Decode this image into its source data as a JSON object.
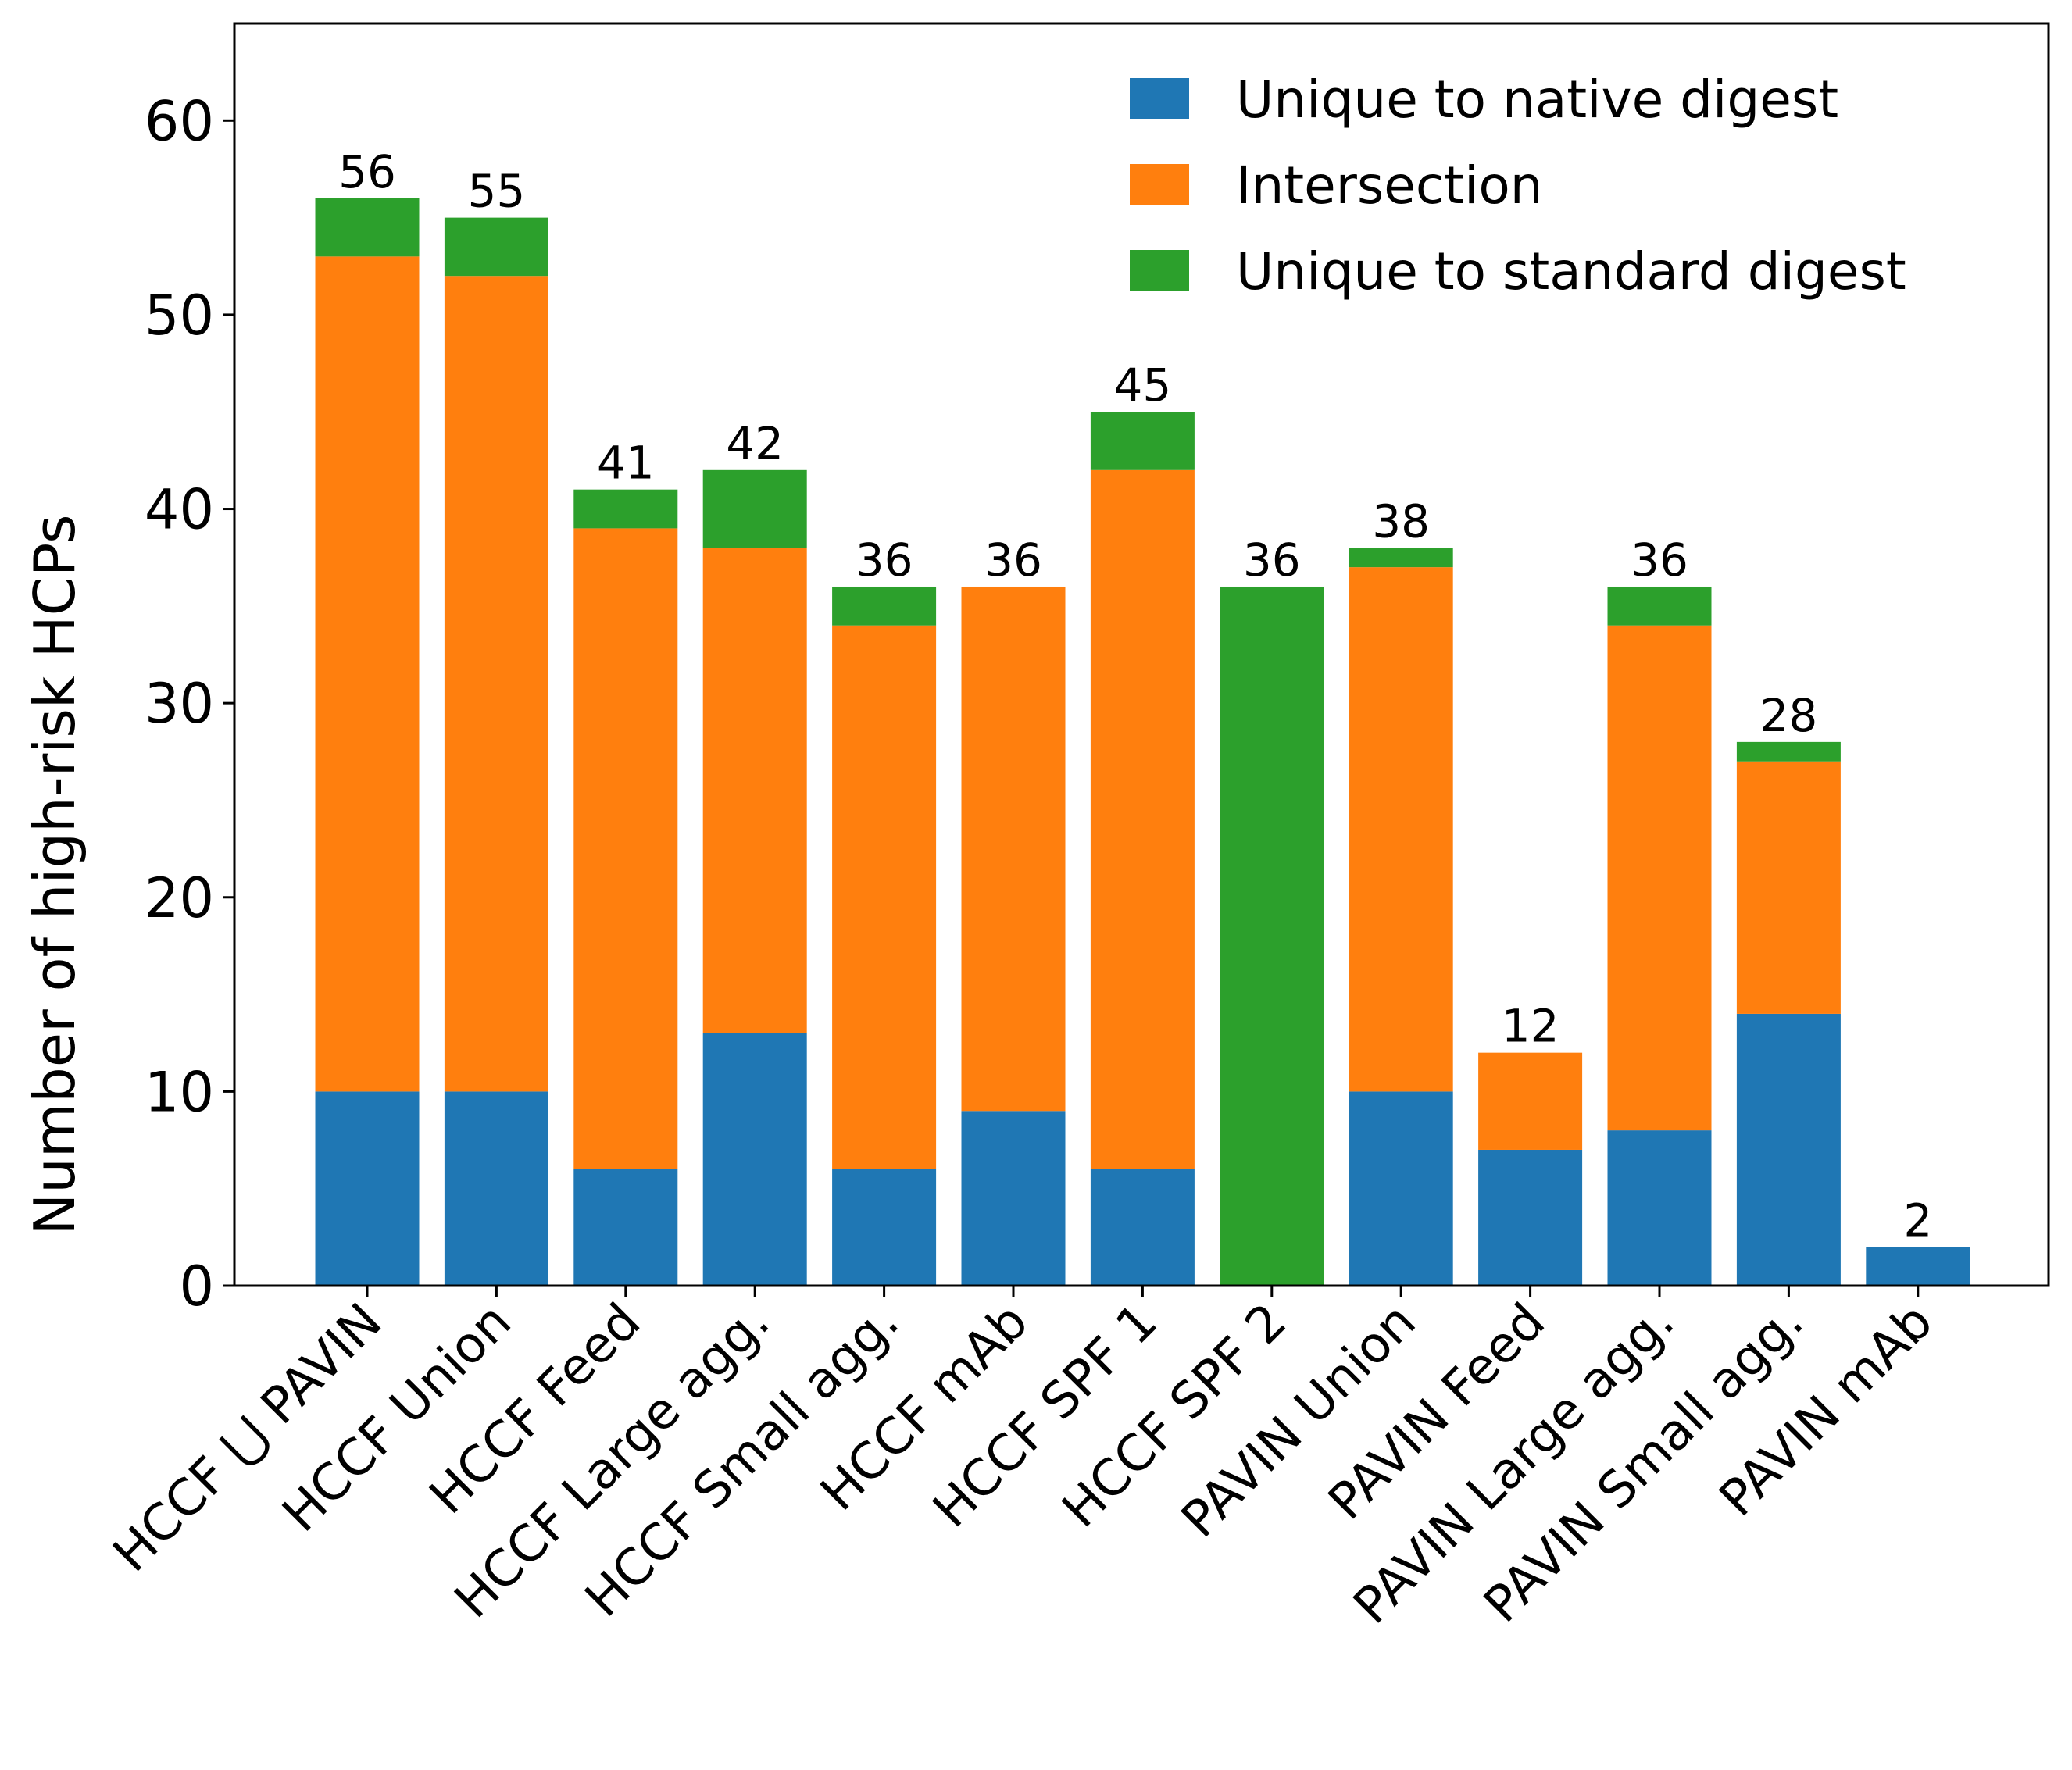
{
  "chart_data": {
    "type": "bar",
    "stacked": true,
    "categories": [
      "HCCF ⋃ PAVIN",
      "HCCF Union",
      "HCCF Feed",
      "HCCF Large agg.",
      "HCCF Small agg.",
      "HCCF mAb",
      "HCCF SPF 1",
      "HCCF SPF 2",
      "PAVIN Union",
      "PAVIN Feed",
      "PAVIN Large agg.",
      "PAVIN Small agg.",
      "PAVIN mAb"
    ],
    "series": [
      {
        "name": "Unique to native digest",
        "color": "#1f77b4",
        "values": [
          10,
          10,
          6,
          13,
          6,
          9,
          6,
          0,
          10,
          7,
          8,
          14,
          2
        ]
      },
      {
        "name": "Intersection",
        "color": "#ff7f0e",
        "values": [
          43,
          42,
          33,
          25,
          28,
          27,
          36,
          0,
          27,
          5,
          26,
          13,
          0
        ]
      },
      {
        "name": "Unique to standard digest",
        "color": "#2ca02c",
        "values": [
          3,
          3,
          2,
          4,
          2,
          0,
          3,
          36,
          1,
          0,
          2,
          1,
          0
        ]
      }
    ],
    "totals": [
      "56",
      "55",
      "41",
      "42",
      "36",
      "36",
      "45",
      "36",
      "38",
      "12",
      "36",
      "28",
      "2"
    ],
    "ylabel": "Number of high-risk HCPs",
    "xlabel": "",
    "ylim": [
      0,
      65
    ],
    "yticks": [
      0,
      10,
      20,
      30,
      40,
      50,
      60
    ],
    "ytick_labels": [
      "0",
      "10",
      "20",
      "30",
      "40",
      "50",
      "60"
    ],
    "legend_position": "top-right",
    "grid": false
  }
}
